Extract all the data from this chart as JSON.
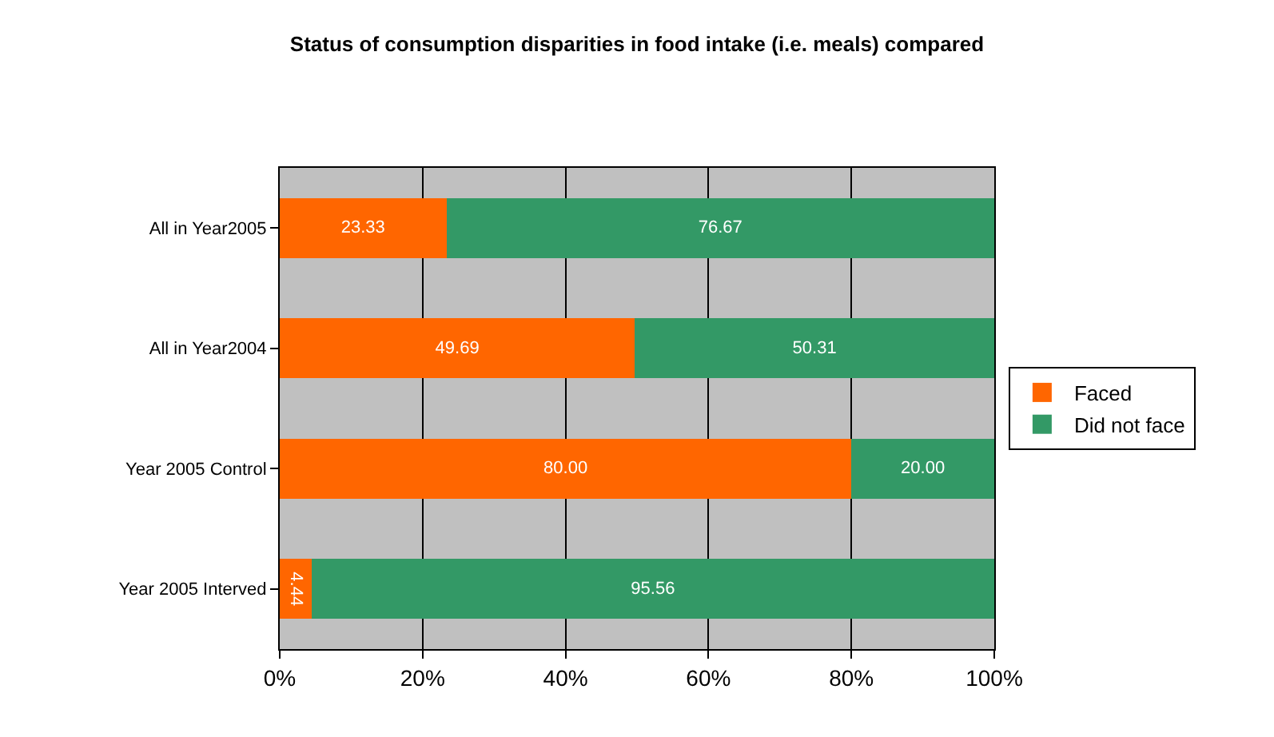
{
  "chart_data": {
    "type": "bar",
    "orientation": "horizontal",
    "stacked": true,
    "title": "Status of consumption disparities in food intake (i.e. meals) compared",
    "categories": [
      "All in Year2005",
      "All in Year2004",
      "Year 2005 Control",
      "Year 2005 Interved"
    ],
    "series": [
      {
        "name": "Faced",
        "color": "#ff6600",
        "values": [
          23.33,
          49.69,
          80.0,
          4.44
        ],
        "value_labels": [
          "23.33",
          "49.69",
          "80.00",
          "4.44"
        ]
      },
      {
        "name": "Did not face",
        "color": "#339966",
        "values": [
          76.67,
          50.31,
          20.0,
          95.56
        ],
        "value_labels": [
          "76.67",
          "50.31",
          "20.00",
          "95.56"
        ]
      }
    ],
    "xlim": [
      0,
      100
    ],
    "xticks": [
      {
        "value": 0,
        "label": "0%"
      },
      {
        "value": 20,
        "label": "20%"
      },
      {
        "value": 40,
        "label": "40%"
      },
      {
        "value": 60,
        "label": "60%"
      },
      {
        "value": 80,
        "label": "80%"
      },
      {
        "value": 100,
        "label": "100%"
      }
    ],
    "grid": "x",
    "legend": "right"
  }
}
